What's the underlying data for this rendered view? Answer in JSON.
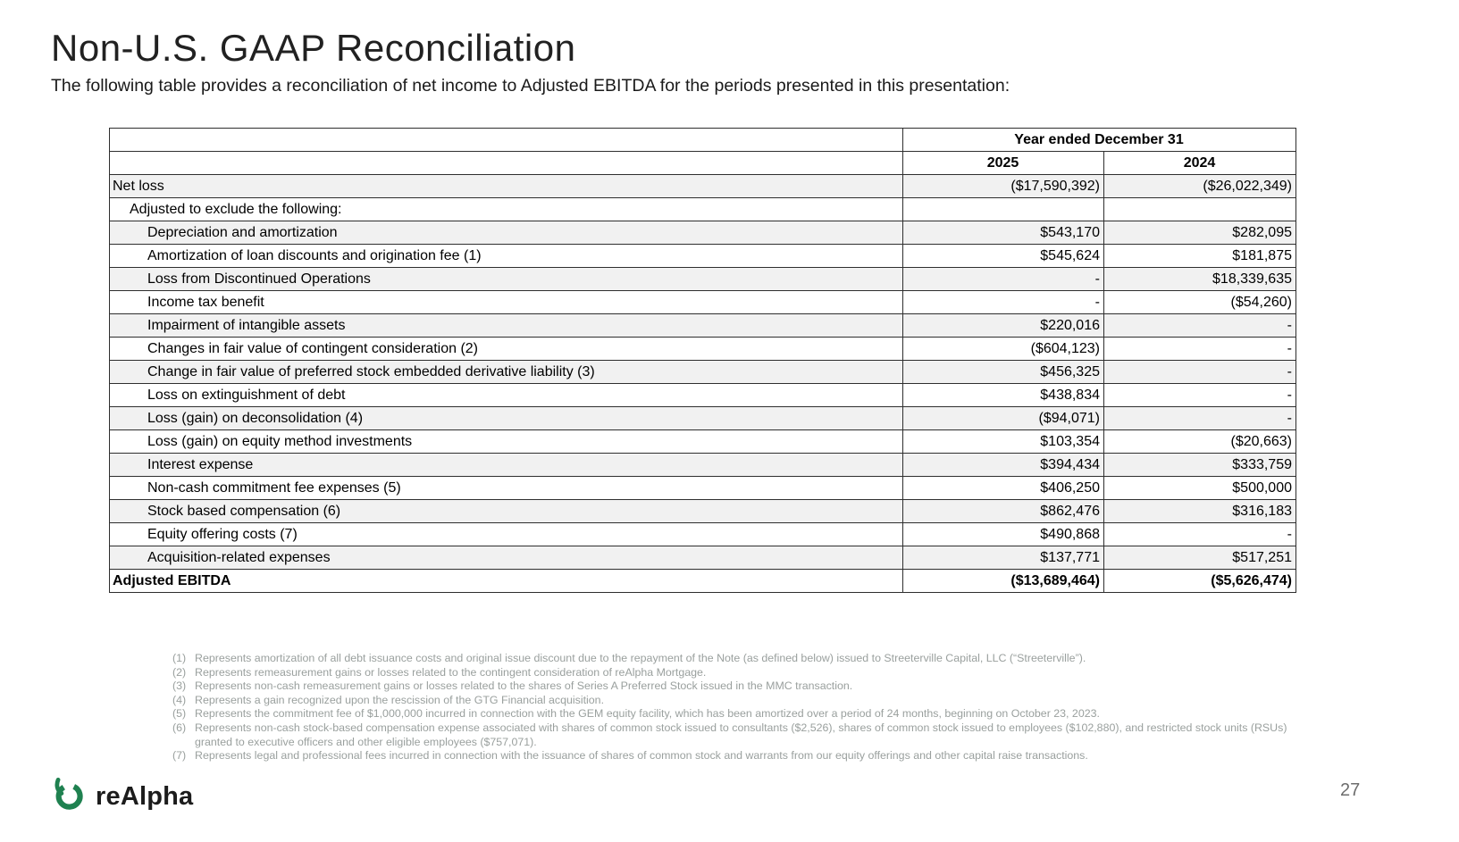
{
  "slide": {
    "title": "Non-U.S. GAAP Reconciliation",
    "subtitle": "The following table provides a reconciliation of net income to Adjusted EBITDA for the periods presented in this presentation:",
    "page_number": "27"
  },
  "logo": {
    "text": "reAlpha",
    "icon_color": "#1f8150"
  },
  "table": {
    "header": {
      "year_span_label": "Year ended December 31",
      "columns": [
        "2025",
        "2024"
      ]
    },
    "rows": [
      {
        "label": "Net loss",
        "indent": 0,
        "bold": false,
        "values": [
          "($17,590,392)",
          "($26,022,349)"
        ]
      },
      {
        "label": "Adjusted to exclude the following:",
        "indent": 1,
        "bold": false,
        "values": [
          "",
          ""
        ]
      },
      {
        "label": "Depreciation and amortization",
        "indent": 2,
        "bold": false,
        "values": [
          "$543,170",
          "$282,095"
        ]
      },
      {
        "label": "Amortization of loan discounts and origination fee (1)",
        "indent": 2,
        "bold": false,
        "values": [
          "$545,624",
          "$181,875"
        ]
      },
      {
        "label": "Loss from Discontinued Operations",
        "indent": 2,
        "bold": false,
        "values": [
          "-",
          "$18,339,635"
        ]
      },
      {
        "label": "Income tax benefit",
        "indent": 2,
        "bold": false,
        "values": [
          "-",
          "($54,260)"
        ]
      },
      {
        "label": "Impairment of intangible assets",
        "indent": 2,
        "bold": false,
        "values": [
          "$220,016",
          "-"
        ]
      },
      {
        "label": "Changes in fair value of contingent consideration (2)",
        "indent": 2,
        "bold": false,
        "values": [
          "($604,123)",
          "-"
        ]
      },
      {
        "label": "Change in fair value of preferred stock embedded derivative liability (3)",
        "indent": 2,
        "bold": false,
        "values": [
          "$456,325",
          "-"
        ]
      },
      {
        "label": "Loss on extinguishment of debt",
        "indent": 2,
        "bold": false,
        "values": [
          "$438,834",
          "-"
        ]
      },
      {
        "label": "Loss (gain) on deconsolidation (4)",
        "indent": 2,
        "bold": false,
        "values": [
          "($94,071)",
          "-"
        ]
      },
      {
        "label": "Loss (gain) on equity method investments",
        "indent": 2,
        "bold": false,
        "values": [
          "$103,354",
          "($20,663)"
        ]
      },
      {
        "label": "Interest expense",
        "indent": 2,
        "bold": false,
        "values": [
          "$394,434",
          "$333,759"
        ]
      },
      {
        "label": "Non-cash commitment fee expenses (5)",
        "indent": 2,
        "bold": false,
        "values": [
          "$406,250",
          "$500,000"
        ]
      },
      {
        "label": "Stock based compensation (6)",
        "indent": 2,
        "bold": false,
        "values": [
          "$862,476",
          "$316,183"
        ]
      },
      {
        "label": "Equity offering costs (7)",
        "indent": 2,
        "bold": false,
        "values": [
          "$490,868",
          "-"
        ]
      },
      {
        "label": "Acquisition-related expenses",
        "indent": 2,
        "bold": false,
        "values": [
          "$137,771",
          "$517,251"
        ]
      },
      {
        "label": "Adjusted EBITDA",
        "indent": 0,
        "bold": true,
        "values": [
          "($13,689,464)",
          "($5,626,474)"
        ]
      }
    ]
  },
  "footnotes": [
    {
      "num": "(1)",
      "text": "Represents amortization of all debt issuance costs and original issue discount due to the repayment of the Note (as defined below) issued to Streeterville Capital, LLC (“Streeterville”)."
    },
    {
      "num": "(2)",
      "text": "Represents remeasurement gains or losses related to the contingent consideration of reAlpha Mortgage."
    },
    {
      "num": "(3)",
      "text": "Represents non-cash remeasurement gains or losses related to the shares of Series A Preferred Stock issued in the MMC transaction."
    },
    {
      "num": "(4)",
      "text": "Represents a gain recognized upon the rescission of the GTG Financial acquisition."
    },
    {
      "num": "(5)",
      "text": "Represents the commitment fee of $1,000,000 incurred in connection with the GEM equity facility, which has been amortized over a period of 24 months, beginning on October 23, 2023."
    },
    {
      "num": "(6)",
      "text": "Represents non-cash stock-based compensation expense associated with shares of common stock issued to consultants ($2,526), shares of common stock issued to employees ($102,880), and restricted stock units (RSUs) granted to executive officers and other eligible employees ($757,071)."
    },
    {
      "num": "(7)",
      "text": "Represents legal and professional fees incurred in connection with the issuance of shares of common stock and warrants from our equity offerings and other capital raise transactions."
    }
  ]
}
